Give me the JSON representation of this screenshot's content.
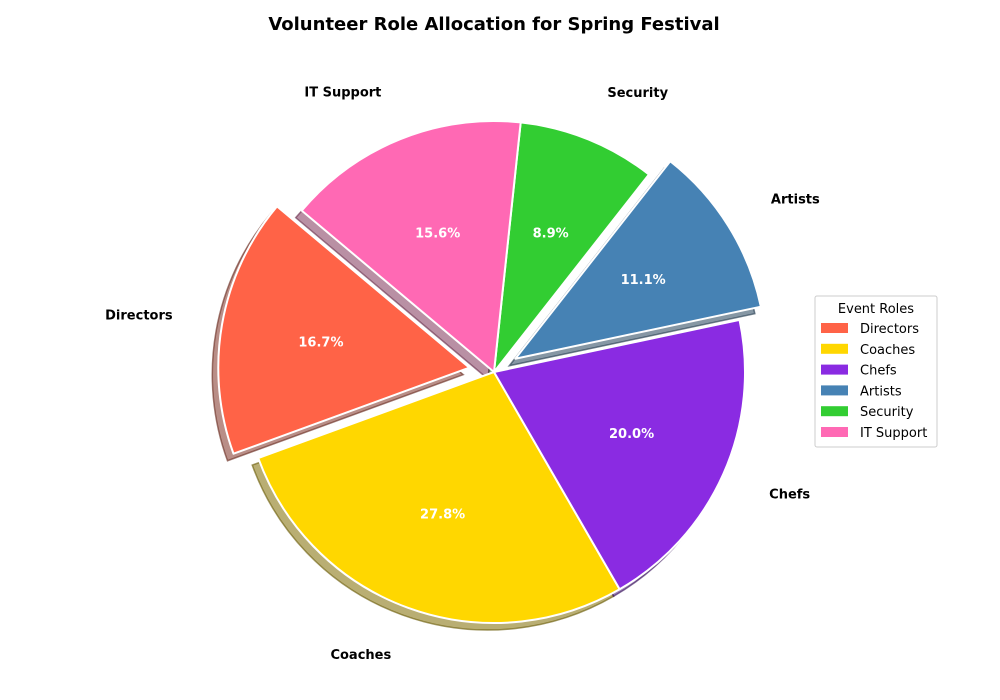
{
  "chart_data": {
    "type": "pie",
    "title": "Volunteer Role Allocation for Spring Festival",
    "categories": [
      "Directors",
      "Coaches",
      "Chefs",
      "Artists",
      "Security",
      "IT Support"
    ],
    "percent_labels": [
      "16.7%",
      "27.8%",
      "20.0%",
      "11.1%",
      "8.9%",
      "15.6%"
    ],
    "values": [
      16.7,
      27.8,
      20.0,
      11.1,
      8.9,
      15.6
    ],
    "colors": [
      "#FF6347",
      "#FFD700",
      "#8A2BE2",
      "#4682B4",
      "#32CD32",
      "#FF69B4"
    ],
    "exploded": [
      "Directors",
      "Artists"
    ],
    "shadow": true,
    "legend": {
      "title": "Event Roles",
      "placement": "right"
    }
  }
}
